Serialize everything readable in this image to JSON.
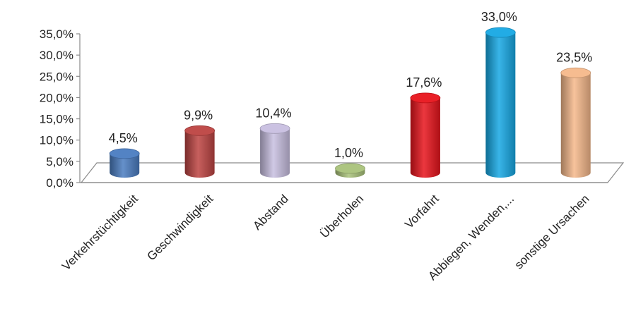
{
  "chart_data": {
    "type": "bar",
    "title": "",
    "xlabel": "",
    "ylabel": "",
    "ylim": [
      0,
      35
    ],
    "y_ticks": [
      "0,0%",
      "5,0%",
      "10,0%",
      "15,0%",
      "20,0%",
      "25,0%",
      "30,0%",
      "35,0%"
    ],
    "categories": [
      "Verkehrstüchtigkeit",
      "Geschwindigkeit",
      "Abstand",
      "Überholen",
      "Vorfahrt",
      "Abbiegen, Wenden,...",
      "sonstige Ursachen"
    ],
    "values": [
      4.5,
      9.9,
      10.4,
      1.0,
      17.6,
      33.0,
      23.5
    ],
    "data_labels": [
      "4,5%",
      "9,9%",
      "10,4%",
      "1,0%",
      "17,6%",
      "33,0%",
      "23,5%"
    ],
    "colors": [
      "#4a7cc1",
      "#bd4442",
      "#c8bfe0",
      "#a9c27a",
      "#e8141c",
      "#16a8e4",
      "#f5b88a"
    ],
    "style": "3d-cylinder",
    "grid": false,
    "legend": "none"
  }
}
